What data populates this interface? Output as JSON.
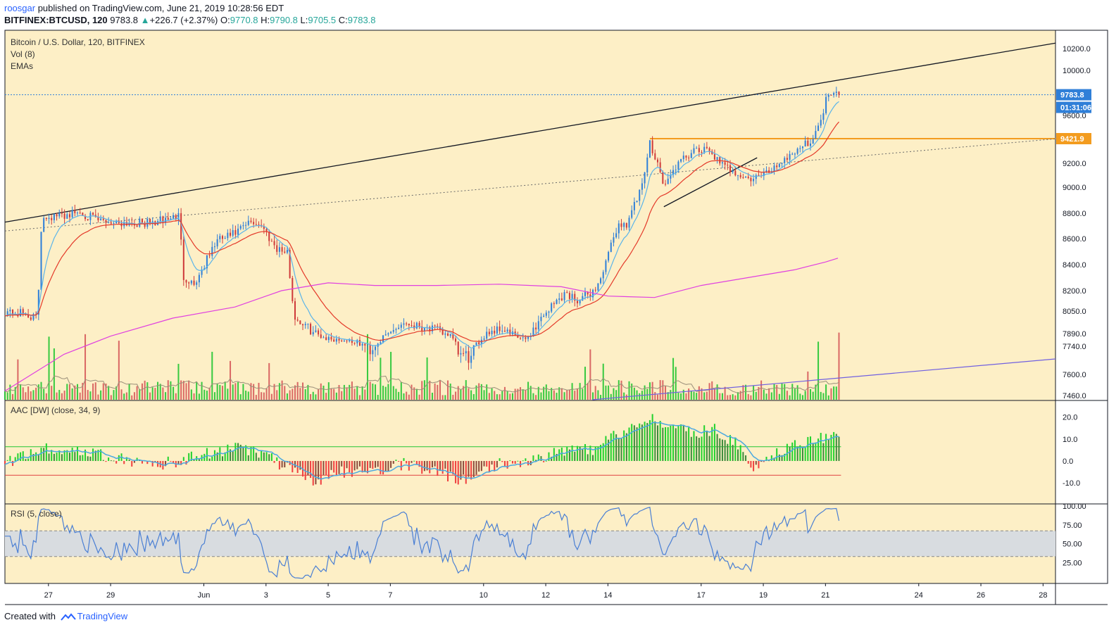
{
  "header": {
    "user": "roosgar",
    "published": " published on TradingView.com, June 21, 2019 10:28:56 EDT",
    "symbol": "BITFINEX:BTCUSD, 120",
    "last": "9783.8",
    "change_arrow": "▲",
    "change": "+226.7 (+2.37%)",
    "o_label": "O:",
    "o": "9770.8",
    "h_label": "H:",
    "h": "9790.8",
    "l_label": "L:",
    "l": "9705.5",
    "c_label": "C:",
    "c": "9783.8"
  },
  "legend": {
    "title": "Bitcoin / U.S. Dollar, 120, BITFINEX",
    "vol": "Vol (8)",
    "emas": "EMAs"
  },
  "footer": {
    "created": "Created with",
    "brand": "TradingView"
  },
  "colors": {
    "background": "#fdefc6",
    "candle_up": "#2f7fd8",
    "candle_down": "#cf3a3a",
    "vol_up": "#22c532",
    "vol_down": "#d65a5a",
    "ema_fast": "#5ab4ea",
    "ema_slow": "#e43a2a",
    "ema_long": "#e040e0",
    "resistance": "#f39c1f",
    "trendline": "#131722",
    "vol_trend": "#7060e0",
    "aac_up": "#22d22e",
    "aac_up_dark": "#3c8a3c",
    "aac_down": "#f04040",
    "aac_down_dark": "#8c4a3c",
    "aac_signal": "#4aa8e0",
    "rsi_line": "#4a7fd4",
    "rsi_band": "#d8dce0"
  },
  "chart_data": [
    {
      "type": "candlestick",
      "title": "Bitcoin / U.S. Dollar, 120, BITFINEX",
      "ylim": [
        7420,
        10320
      ],
      "y_ticks": [
        "10200.0",
        "10000.0",
        "9600.0",
        "9200.0",
        "9000.0",
        "8800.0",
        "8600.0",
        "8400.0",
        "8200.0",
        "8050.0",
        "7890.0",
        "7740.0",
        "7600.0",
        "7460.0"
      ],
      "y_tick_values": [
        10200,
        10000,
        9600,
        9200,
        9000,
        8800,
        8600,
        8400,
        8200,
        8050,
        7890,
        7740,
        7600,
        7460
      ],
      "last_price": "9783.8",
      "countdown": "01:31:06",
      "resistance_level": "9421.9",
      "resistance_value": 9421.9,
      "x_labels": [
        "27",
        "29",
        "Jun",
        "3",
        "5",
        "7",
        "10",
        "12",
        "14",
        "17",
        "19",
        "21",
        "24",
        "26",
        "28"
      ],
      "x_label_days": [
        0,
        2,
        5,
        7,
        9,
        11,
        14,
        16,
        18,
        21,
        23,
        25,
        28,
        30,
        32
      ],
      "x_axis_note": "days since May 27, 2019; 120-minute bars",
      "series": [
        {
          "name": "price",
          "keypoints": [
            [
              -1.4,
              8050
            ],
            [
              -0.6,
              8020
            ],
            [
              -0.35,
              7990
            ],
            [
              -0.25,
              8650
            ],
            [
              -0.15,
              8780
            ],
            [
              0.2,
              8770
            ],
            [
              1.0,
              8810
            ],
            [
              1.6,
              8740
            ],
            [
              2.3,
              8730
            ],
            [
              3.3,
              8720
            ],
            [
              3.6,
              8740
            ],
            [
              4.2,
              8780
            ],
            [
              4.35,
              8310
            ],
            [
              4.7,
              8250
            ],
            [
              5.4,
              8580
            ],
            [
              6.0,
              8640
            ],
            [
              6.5,
              8730
            ],
            [
              6.8,
              8720
            ],
            [
              7.3,
              8540
            ],
            [
              7.7,
              8480
            ],
            [
              7.9,
              8010
            ],
            [
              8.4,
              7920
            ],
            [
              9.0,
              7830
            ],
            [
              9.7,
              7810
            ],
            [
              10.4,
              7720
            ],
            [
              10.9,
              7880
            ],
            [
              11.4,
              7970
            ],
            [
              12.1,
              7940
            ],
            [
              12.9,
              7880
            ],
            [
              13.2,
              7700
            ],
            [
              13.6,
              7680
            ],
            [
              14.1,
              7900
            ],
            [
              14.6,
              7930
            ],
            [
              15.3,
              7810
            ],
            [
              15.9,
              8020
            ],
            [
              16.6,
              8180
            ],
            [
              17.1,
              8130
            ],
            [
              17.6,
              8210
            ],
            [
              17.9,
              8380
            ],
            [
              18.3,
              8700
            ],
            [
              18.6,
              8720
            ],
            [
              19.1,
              9000
            ],
            [
              19.35,
              9380
            ],
            [
              19.6,
              9210
            ],
            [
              19.8,
              9000
            ],
            [
              20.2,
              9180
            ],
            [
              20.7,
              9300
            ],
            [
              21.3,
              9320
            ],
            [
              21.6,
              9190
            ],
            [
              22.1,
              9130
            ],
            [
              22.5,
              9060
            ],
            [
              23.0,
              9100
            ],
            [
              23.5,
              9200
            ],
            [
              24.1,
              9330
            ],
            [
              24.5,
              9400
            ],
            [
              24.8,
              9510
            ],
            [
              25.05,
              9780
            ],
            [
              25.3,
              9830
            ],
            [
              25.5,
              9783.8
            ]
          ]
        },
        {
          "name": "EMA 200",
          "points": [
            [
              -1.4,
              7490
            ],
            [
              0.5,
              7700
            ],
            [
              2,
              7860
            ],
            [
              4,
              8000
            ],
            [
              6,
              8080
            ],
            [
              7.5,
              8200
            ],
            [
              9,
              8260
            ],
            [
              10.5,
              8240
            ],
            [
              12.5,
              8240
            ],
            [
              14.5,
              8250
            ],
            [
              16.5,
              8230
            ],
            [
              18,
              8160
            ],
            [
              19.5,
              8150
            ],
            [
              21,
              8240
            ],
            [
              22.5,
              8300
            ],
            [
              24,
              8360
            ],
            [
              25.0,
              8420
            ],
            [
              25.4,
              8450
            ]
          ]
        }
      ],
      "lines": [
        {
          "name": "upper trendline",
          "points": [
            [
              -1.4,
              8730
            ],
            [
              32.4,
              10250
            ]
          ]
        },
        {
          "name": "dotted trendline",
          "points": [
            [
              -1.4,
              8660
            ],
            [
              32.4,
              9420
            ]
          ]
        },
        {
          "name": "rising support",
          "points": [
            [
              19.8,
              8850
            ],
            [
              22.8,
              9250
            ]
          ]
        }
      ]
    },
    {
      "type": "bar",
      "title": "Vol (8)",
      "note": "volume histogram with 8-period moving average"
    },
    {
      "type": "bar",
      "title": "AAC [DW] (close, 34, 9)",
      "ylim": [
        -17,
        25
      ],
      "y_ticks": [
        "20.0",
        "10.0",
        "0.0",
        "-10.0"
      ],
      "y_tick_values": [
        20,
        10,
        0,
        -10
      ],
      "levels": [
        6.5,
        -6.5
      ],
      "keypoints": [
        [
          -1.4,
          -1
        ],
        [
          0,
          6
        ],
        [
          1,
          4
        ],
        [
          2,
          2
        ],
        [
          3,
          -1
        ],
        [
          4,
          -1
        ],
        [
          5,
          3
        ],
        [
          6,
          6
        ],
        [
          7,
          3
        ],
        [
          7.6,
          -3
        ],
        [
          8.5,
          -10
        ],
        [
          9.5,
          -5
        ],
        [
          10.5,
          -4
        ],
        [
          11.5,
          -1
        ],
        [
          12.5,
          -5
        ],
        [
          13.5,
          -9
        ],
        [
          14.5,
          -1
        ],
        [
          15.5,
          0
        ],
        [
          16.5,
          5
        ],
        [
          17.5,
          5
        ],
        [
          18.3,
          12
        ],
        [
          19.3,
          19
        ],
        [
          19.6,
          19
        ],
        [
          20.5,
          13
        ],
        [
          21.5,
          14
        ],
        [
          22.3,
          6
        ],
        [
          22.7,
          -3
        ],
        [
          23.5,
          4
        ],
        [
          24.3,
          9
        ],
        [
          25.3,
          12
        ]
      ]
    },
    {
      "type": "line",
      "title": "RSI (5, close)",
      "ylim": [
        0,
        100
      ],
      "y_ticks": [
        "100.00",
        "75.00",
        "50.00",
        "25.00"
      ],
      "y_tick_values": [
        100,
        75,
        50,
        25
      ],
      "band": [
        33,
        67
      ]
    }
  ]
}
